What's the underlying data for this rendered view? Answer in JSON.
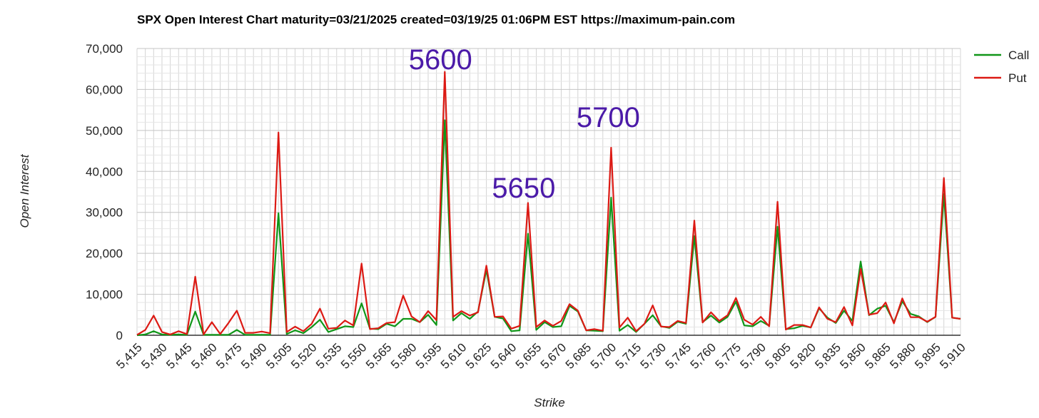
{
  "chart_data": {
    "type": "line",
    "title": "SPX Open Interest Chart maturity=03/21/2025 created=03/19/25 01:06PM EST https://maximum-pain.com",
    "xlabel": "Strike",
    "ylabel": "Open Interest",
    "ylim": [
      0,
      70000
    ],
    "y_ticks": [
      0,
      10000,
      20000,
      30000,
      40000,
      50000,
      60000,
      70000
    ],
    "y_tick_labels": [
      "0",
      "10,000",
      "20,000",
      "30,000",
      "40,000",
      "50,000",
      "60,000",
      "70,000"
    ],
    "x_tick_labels": [
      "5,415",
      "5,430",
      "5,445",
      "5,460",
      "5,475",
      "5,490",
      "5,505",
      "5,520",
      "5,535",
      "5,550",
      "5,565",
      "5,580",
      "5,595",
      "5,610",
      "5,625",
      "5,640",
      "5,655",
      "5,670",
      "5,685",
      "5,700",
      "5,715",
      "5,730",
      "5,745",
      "5,760",
      "5,775",
      "5,790",
      "5,805",
      "5,820",
      "5,835",
      "5,850",
      "5,865",
      "5,880",
      "5,895",
      "5,910"
    ],
    "x": [
      5415,
      5420,
      5425,
      5430,
      5435,
      5440,
      5445,
      5450,
      5455,
      5460,
      5465,
      5470,
      5475,
      5480,
      5485,
      5490,
      5495,
      5500,
      5505,
      5510,
      5515,
      5520,
      5525,
      5530,
      5535,
      5540,
      5545,
      5550,
      5555,
      5560,
      5565,
      5570,
      5575,
      5580,
      5585,
      5590,
      5595,
      5600,
      5605,
      5610,
      5615,
      5620,
      5625,
      5630,
      5635,
      5640,
      5645,
      5650,
      5655,
      5660,
      5665,
      5670,
      5675,
      5680,
      5685,
      5690,
      5695,
      5700,
      5705,
      5710,
      5715,
      5720,
      5725,
      5730,
      5735,
      5740,
      5745,
      5750,
      5755,
      5760,
      5765,
      5770,
      5775,
      5780,
      5785,
      5790,
      5795,
      5800,
      5805,
      5810,
      5815,
      5820,
      5825,
      5830,
      5835,
      5840,
      5845,
      5850,
      5855,
      5860,
      5865,
      5870,
      5875,
      5880,
      5885,
      5890,
      5895,
      5900,
      5905,
      5910
    ],
    "grid": true,
    "legend_position": "right",
    "series": [
      {
        "name": "Call",
        "color": "#109618",
        "values": [
          0,
          200,
          1000,
          200,
          100,
          200,
          100,
          5800,
          100,
          100,
          100,
          100,
          1300,
          100,
          100,
          100,
          100,
          29800,
          300,
          1200,
          500,
          2000,
          3800,
          800,
          1500,
          2200,
          2000,
          7800,
          1600,
          1500,
          2800,
          2200,
          4000,
          4000,
          3200,
          5000,
          2500,
          52500,
          3600,
          5400,
          4000,
          5800,
          16000,
          4500,
          4100,
          1000,
          1200,
          24800,
          1300,
          3200,
          2000,
          2200,
          7200,
          5800,
          1200,
          1100,
          1000,
          33600,
          1100,
          2500,
          800,
          2800,
          4900,
          2200,
          1800,
          3300,
          2800,
          24200,
          3200,
          4800,
          3100,
          4500,
          8200,
          2400,
          2200,
          3500,
          2300,
          26500,
          1500,
          1700,
          2300,
          1900,
          6600,
          4300,
          3000,
          6000,
          3500,
          18000,
          4900,
          6500,
          7200,
          3200,
          8300,
          5200,
          4600,
          3200,
          4500,
          34500,
          4300,
          4000
        ]
      },
      {
        "name": "Put",
        "color": "#dc1a14",
        "values": [
          100,
          1300,
          4800,
          800,
          200,
          1000,
          300,
          14300,
          200,
          3200,
          300,
          3000,
          6000,
          600,
          600,
          900,
          500,
          49500,
          800,
          2100,
          1000,
          2800,
          6500,
          1600,
          1800,
          3600,
          2400,
          17500,
          1500,
          1700,
          3000,
          3200,
          9700,
          4600,
          3200,
          5900,
          3700,
          64300,
          4500,
          5900,
          4800,
          5600,
          17000,
          4500,
          4600,
          1600,
          2300,
          32300,
          2000,
          3600,
          2300,
          3500,
          7600,
          6000,
          1200,
          1500,
          1100,
          45800,
          1900,
          4300,
          1000,
          2800,
          7300,
          2100,
          2000,
          3500,
          3000,
          28000,
          3100,
          5600,
          3500,
          4900,
          9100,
          3800,
          2600,
          4500,
          2200,
          32600,
          1400,
          2500,
          2500,
          1900,
          6800,
          4000,
          3200,
          6900,
          2400,
          16200,
          5000,
          5400,
          8000,
          2900,
          9000,
          4400,
          4400,
          3300,
          4500,
          38400,
          4300,
          4000
        ]
      }
    ],
    "annotations": [
      {
        "text": "5600",
        "x": 5600,
        "color": "#4b1aa8"
      },
      {
        "text": "5650",
        "x": 5650,
        "color": "#4b1aa8"
      },
      {
        "text": "5700",
        "x": 5700,
        "color": "#4b1aa8"
      }
    ],
    "frame": {
      "gridline_color": "#d4d4d4",
      "baseline_color": "#333333"
    }
  }
}
